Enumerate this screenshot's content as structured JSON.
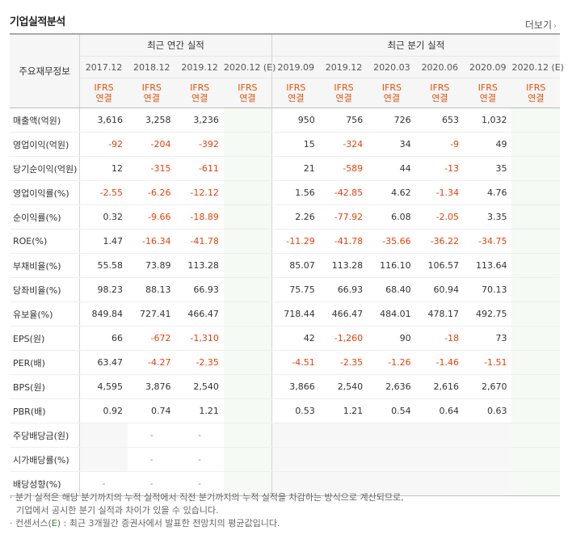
{
  "title": "기업실적분석",
  "more_label": "더보기",
  "header": {
    "row_label": "주요재무정보",
    "annual_group": "최근 연간 실적",
    "quarter_group": "최근 분기 실적",
    "periods": [
      "2017.12",
      "2018.12",
      "2019.12",
      "2020.12 (E)",
      "2019.09",
      "2019.12",
      "2020.03",
      "2020.06",
      "2020.09",
      "2020.12 (E)"
    ],
    "basis_line1": "IFRS",
    "basis_line2": "연결"
  },
  "rows": [
    {
      "label": "매출액(억원)",
      "values": [
        "3,616",
        "3,258",
        "3,236",
        "",
        "950",
        "756",
        "726",
        "653",
        "1,032",
        ""
      ]
    },
    {
      "label": "영업이익(억원)",
      "values": [
        "-92",
        "-204",
        "-392",
        "",
        "15",
        "-324",
        "34",
        "-9",
        "49",
        ""
      ]
    },
    {
      "label": "당기순이익(억원)",
      "values": [
        "12",
        "-315",
        "-611",
        "",
        "21",
        "-589",
        "44",
        "-13",
        "35",
        ""
      ]
    },
    {
      "label": "영업이익률(%)",
      "values": [
        "-2.55",
        "-6.26",
        "-12.12",
        "",
        "1.56",
        "-42.85",
        "4.62",
        "-1.34",
        "4.76",
        ""
      ]
    },
    {
      "label": "순이익률(%)",
      "values": [
        "0.32",
        "-9.66",
        "-18.89",
        "",
        "2.26",
        "-77.92",
        "6.08",
        "-2.05",
        "3.35",
        ""
      ]
    },
    {
      "label": "ROE(%)",
      "values": [
        "1.47",
        "-16.34",
        "-41.78",
        "",
        "-11.29",
        "-41.78",
        "-35.66",
        "-36.22",
        "-34.75",
        ""
      ]
    },
    {
      "label": "부채비율(%)",
      "values": [
        "55.58",
        "73.89",
        "113.28",
        "",
        "85.07",
        "113.28",
        "116.10",
        "106.57",
        "113.64",
        ""
      ]
    },
    {
      "label": "당좌비율(%)",
      "values": [
        "98.23",
        "88.13",
        "66.93",
        "",
        "75.75",
        "66.93",
        "68.40",
        "60.94",
        "70.13",
        ""
      ]
    },
    {
      "label": "유보율(%)",
      "values": [
        "849.84",
        "727.41",
        "466.47",
        "",
        "718.44",
        "466.47",
        "484.01",
        "478.17",
        "492.75",
        ""
      ]
    },
    {
      "label": "EPS(원)",
      "values": [
        "66",
        "-672",
        "-1,310",
        "",
        "42",
        "-1,260",
        "90",
        "-18",
        "73",
        ""
      ]
    },
    {
      "label": "PER(배)",
      "values": [
        "63.47",
        "-4.27",
        "-2.35",
        "",
        "-4.51",
        "-2.35",
        "-1.26",
        "-1.46",
        "-1.51",
        ""
      ]
    },
    {
      "label": "BPS(원)",
      "values": [
        "4,595",
        "3,876",
        "2,540",
        "",
        "3,866",
        "2,540",
        "2,636",
        "2,616",
        "2,670",
        ""
      ]
    },
    {
      "label": "PBR(배)",
      "values": [
        "0.92",
        "0.74",
        "1.21",
        "",
        "0.53",
        "1.21",
        "0.54",
        "0.64",
        "0.63",
        ""
      ]
    },
    {
      "label": "주당배당금(원)",
      "values": [
        "",
        "-",
        "-",
        "",
        "",
        "",
        "",
        "",
        "",
        ""
      ]
    },
    {
      "label": "시가배당률(%)",
      "values": [
        "",
        "-",
        "-",
        "",
        "",
        "",
        "",
        "",
        "",
        ""
      ]
    },
    {
      "label": "배당성향(%)",
      "values": [
        "-",
        "-",
        "-",
        "",
        "",
        "",
        "",
        "",
        "",
        ""
      ]
    }
  ],
  "notes": {
    "line1": "· 분기 실적은 해당 분기까지의 누적 실적에서 직전 분기까지의 누적 실적을 차감하는 방식으로 계산되므로,",
    "line2": "기업에서 공시한 분기 실적과 차이가 있을 수 있습니다.",
    "line3_a": "· 컨센서스(",
    "line3_e": "E",
    "line3_b": ") : 최근 3개월간 증권사에서 발표한 전망치의 평균값입니다."
  }
}
